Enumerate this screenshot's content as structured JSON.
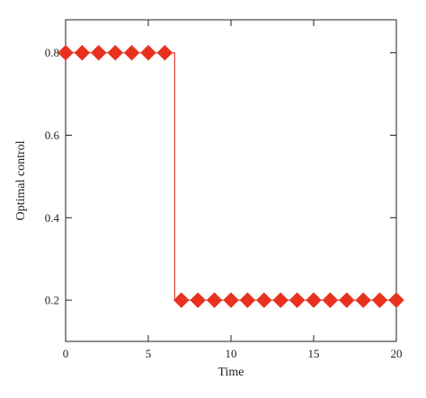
{
  "chart_data": {
    "type": "line",
    "xlabel": "Time",
    "ylabel": "Optimal control",
    "xlim": [
      0,
      20
    ],
    "ylim": [
      0.1,
      0.88
    ],
    "x_ticks": [
      0,
      5,
      10,
      15,
      20
    ],
    "y_ticks": [
      0.2,
      0.4,
      0.6,
      0.8
    ],
    "x_tick_labels": [
      "0",
      "5",
      "10",
      "15",
      "20"
    ],
    "y_tick_labels": [
      "0.2",
      "0.4",
      "0.6",
      "0.8"
    ],
    "grid": false,
    "series": [
      {
        "line_color": "#e8402f",
        "marker": "diamond",
        "marker_color": "#e8321f",
        "step_line": [
          [
            0,
            0.8
          ],
          [
            6.6,
            0.8
          ],
          [
            6.6,
            0.2
          ],
          [
            20,
            0.2
          ]
        ],
        "points": [
          {
            "x": 0,
            "y": 0.8
          },
          {
            "x": 1,
            "y": 0.8
          },
          {
            "x": 2,
            "y": 0.8
          },
          {
            "x": 3,
            "y": 0.8
          },
          {
            "x": 4,
            "y": 0.8
          },
          {
            "x": 5,
            "y": 0.8
          },
          {
            "x": 6,
            "y": 0.8
          },
          {
            "x": 7,
            "y": 0.2
          },
          {
            "x": 8,
            "y": 0.2
          },
          {
            "x": 9,
            "y": 0.2
          },
          {
            "x": 10,
            "y": 0.2
          },
          {
            "x": 11,
            "y": 0.2
          },
          {
            "x": 12,
            "y": 0.2
          },
          {
            "x": 13,
            "y": 0.2
          },
          {
            "x": 14,
            "y": 0.2
          },
          {
            "x": 15,
            "y": 0.2
          },
          {
            "x": 16,
            "y": 0.2
          },
          {
            "x": 17,
            "y": 0.2
          },
          {
            "x": 18,
            "y": 0.2
          },
          {
            "x": 19,
            "y": 0.2
          },
          {
            "x": 20,
            "y": 0.2
          }
        ]
      }
    ]
  }
}
